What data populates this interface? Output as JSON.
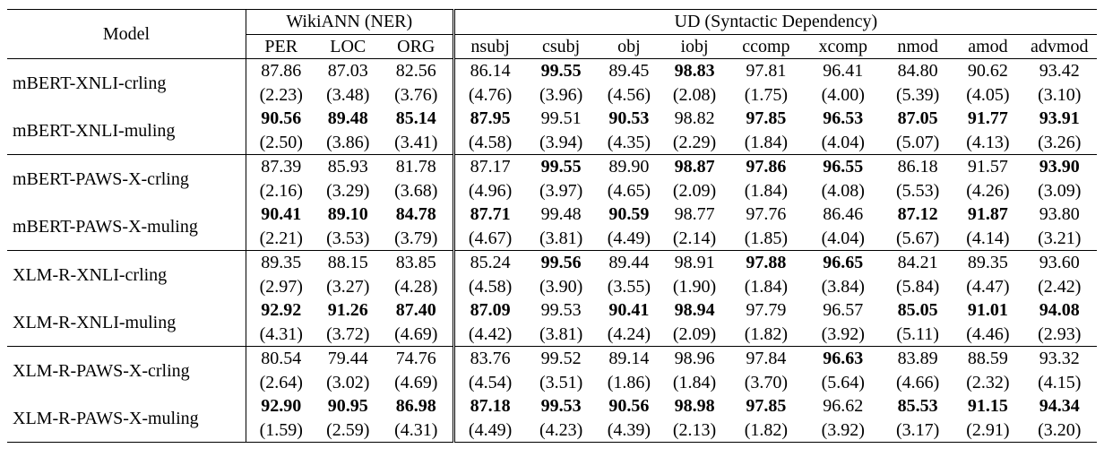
{
  "header": {
    "model_label": "Model",
    "group_ner": "WikiANN (NER)",
    "group_ud": "UD (Syntactic Dependency)",
    "ner_cols": [
      "PER",
      "LOC",
      "ORG"
    ],
    "ud_cols": [
      "nsubj",
      "csubj",
      "obj",
      "iobj",
      "ccomp",
      "xcomp",
      "nmod",
      "amod",
      "advmod"
    ]
  },
  "rows": [
    {
      "model": "mBERT-XNLI-crling",
      "means": [
        "87.86",
        "87.03",
        "82.56",
        "86.14",
        "99.55",
        "89.45",
        "98.83",
        "97.81",
        "96.41",
        "84.80",
        "90.62",
        "93.42"
      ],
      "stds": [
        "(2.23)",
        "(3.48)",
        "(3.76)",
        "(4.76)",
        "(3.96)",
        "(4.56)",
        "(2.08)",
        "(1.75)",
        "(4.00)",
        "(5.39)",
        "(4.05)",
        "(3.10)"
      ],
      "bold": [
        false,
        false,
        false,
        false,
        true,
        false,
        true,
        false,
        false,
        false,
        false,
        false
      ]
    },
    {
      "model": "mBERT-XNLI-muling",
      "means": [
        "90.56",
        "89.48",
        "85.14",
        "87.95",
        "99.51",
        "90.53",
        "98.82",
        "97.85",
        "96.53",
        "87.05",
        "91.77",
        "93.91"
      ],
      "stds": [
        "(2.50)",
        "(3.86)",
        "(3.41)",
        "(4.58)",
        "(3.94)",
        "(4.35)",
        "(2.29)",
        "(1.84)",
        "(4.04)",
        "(5.07)",
        "(4.13)",
        "(3.26)"
      ],
      "bold": [
        true,
        true,
        true,
        true,
        false,
        true,
        false,
        true,
        true,
        true,
        true,
        true
      ]
    },
    {
      "model": "mBERT-PAWS-X-crling",
      "means": [
        "87.39",
        "85.93",
        "81.78",
        "87.17",
        "99.55",
        "89.90",
        "98.87",
        "97.86",
        "96.55",
        "86.18",
        "91.57",
        "93.90"
      ],
      "stds": [
        "(2.16)",
        "(3.29)",
        "(3.68)",
        "(4.96)",
        "(3.97)",
        "(4.65)",
        "(2.09)",
        "(1.84)",
        "(4.08)",
        "(5.53)",
        "(4.26)",
        "(3.09)"
      ],
      "bold": [
        false,
        false,
        false,
        false,
        true,
        false,
        true,
        true,
        true,
        false,
        false,
        true
      ]
    },
    {
      "model": "mBERT-PAWS-X-muling",
      "means": [
        "90.41",
        "89.10",
        "84.78",
        "87.71",
        "99.48",
        "90.59",
        "98.77",
        "97.76",
        "86.46",
        "87.12",
        "91.87",
        "93.80"
      ],
      "stds": [
        "(2.21)",
        "(3.53)",
        "(3.79)",
        "(4.67)",
        "(3.81)",
        "(4.49)",
        "(2.14)",
        "(1.85)",
        "(4.04)",
        "(5.67)",
        "(4.14)",
        "(3.21)"
      ],
      "bold": [
        true,
        true,
        true,
        true,
        false,
        true,
        false,
        false,
        false,
        true,
        true,
        false
      ]
    },
    {
      "model": "XLM-R-XNLI-crling",
      "means": [
        "89.35",
        "88.15",
        "83.85",
        "85.24",
        "99.56",
        "89.44",
        "98.91",
        "97.88",
        "96.65",
        "84.21",
        "89.35",
        "93.60"
      ],
      "stds": [
        "(2.97)",
        "(3.27)",
        "(4.28)",
        "(4.58)",
        "(3.90)",
        "(3.55)",
        "(1.90)",
        "(1.84)",
        "(3.84)",
        "(5.84)",
        "(4.47)",
        "(2.42)"
      ],
      "bold": [
        false,
        false,
        false,
        false,
        true,
        false,
        false,
        true,
        true,
        false,
        false,
        false
      ]
    },
    {
      "model": "XLM-R-XNLI-muling",
      "means": [
        "92.92",
        "91.26",
        "87.40",
        "87.09",
        "99.53",
        "90.41",
        "98.94",
        "97.79",
        "96.57",
        "85.05",
        "91.01",
        "94.08"
      ],
      "stds": [
        "(4.31)",
        "(3.72)",
        "(4.69)",
        "(4.42)",
        "(3.81)",
        "(4.24)",
        "(2.09)",
        "(1.82)",
        "(3.92)",
        "(5.11)",
        "(4.46)",
        "(2.93)"
      ],
      "bold": [
        true,
        true,
        true,
        true,
        false,
        true,
        true,
        false,
        false,
        true,
        true,
        true
      ]
    },
    {
      "model": "XLM-R-PAWS-X-crling",
      "means": [
        "80.54",
        "79.44",
        "74.76",
        "83.76",
        "99.52",
        "89.14",
        "98.96",
        "97.84",
        "96.63",
        "83.89",
        "88.59",
        "93.32"
      ],
      "stds": [
        "(2.64)",
        "(3.02)",
        "(4.69)",
        "(4.54)",
        "(3.51)",
        "(1.86)",
        "(1.84)",
        "(3.70)",
        "(5.64)",
        "(4.66)",
        "(2.32)",
        "(4.15)"
      ],
      "bold": [
        false,
        false,
        false,
        false,
        false,
        false,
        false,
        false,
        true,
        false,
        false,
        false
      ]
    },
    {
      "model": "XLM-R-PAWS-X-muling",
      "means": [
        "92.90",
        "90.95",
        "86.98",
        "87.18",
        "99.53",
        "90.56",
        "98.98",
        "97.85",
        "96.62",
        "85.53",
        "91.15",
        "94.34"
      ],
      "stds": [
        "(1.59)",
        "(2.59)",
        "(4.31)",
        "(4.49)",
        "(4.23)",
        "(4.39)",
        "(2.13)",
        "(1.82)",
        "(3.92)",
        "(3.17)",
        "(2.91)",
        "(3.20)"
      ],
      "bold": [
        true,
        true,
        true,
        true,
        true,
        true,
        true,
        true,
        false,
        true,
        true,
        true
      ]
    }
  ]
}
